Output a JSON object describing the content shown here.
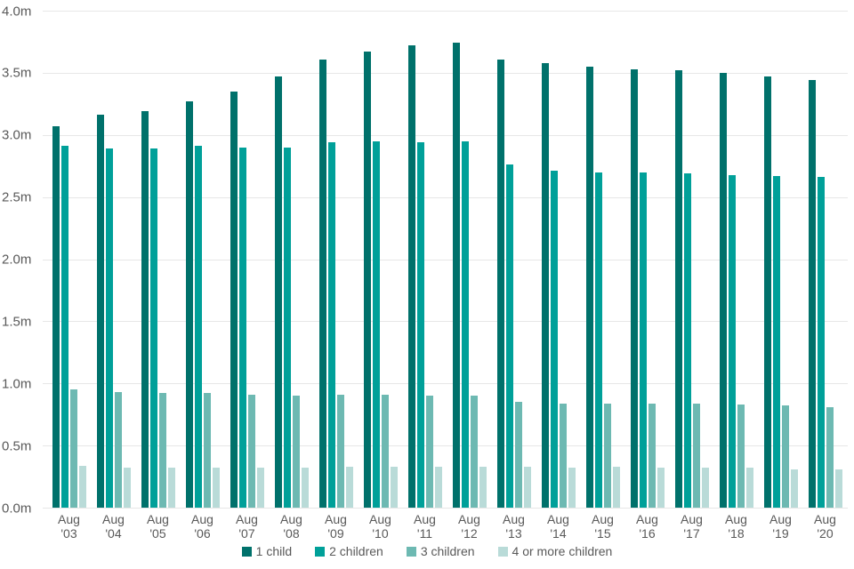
{
  "chart_data": {
    "type": "bar",
    "title": "",
    "categories": [
      "Aug '03",
      "Aug '04",
      "Aug '05",
      "Aug '06",
      "Aug '07",
      "Aug '08",
      "Aug '09",
      "Aug '10",
      "Aug '11",
      "Aug '12",
      "Aug '13",
      "Aug '14",
      "Aug '15",
      "Aug '16",
      "Aug '17",
      "Aug '18",
      "Aug '19",
      "Aug '20"
    ],
    "series": [
      {
        "name": "1 child",
        "color": "#00716B",
        "values": [
          3.07,
          3.16,
          3.19,
          3.27,
          3.35,
          3.47,
          3.61,
          3.67,
          3.72,
          3.74,
          3.61,
          3.58,
          3.55,
          3.53,
          3.52,
          3.5,
          3.47,
          3.44
        ]
      },
      {
        "name": "2 children",
        "color": "#00A099",
        "values": [
          2.91,
          2.89,
          2.89,
          2.91,
          2.9,
          2.9,
          2.94,
          2.95,
          2.94,
          2.95,
          2.76,
          2.71,
          2.7,
          2.7,
          2.69,
          2.68,
          2.67,
          2.66
        ]
      },
      {
        "name": "3 children",
        "color": "#6DB9B2",
        "values": [
          0.95,
          0.93,
          0.92,
          0.92,
          0.91,
          0.9,
          0.91,
          0.91,
          0.9,
          0.9,
          0.85,
          0.84,
          0.84,
          0.84,
          0.84,
          0.83,
          0.82,
          0.81
        ]
      },
      {
        "name": "4 or more children",
        "color": "#B9DBD8",
        "values": [
          0.34,
          0.32,
          0.32,
          0.32,
          0.32,
          0.32,
          0.33,
          0.33,
          0.33,
          0.33,
          0.33,
          0.32,
          0.33,
          0.32,
          0.32,
          0.32,
          0.31,
          0.31
        ]
      }
    ],
    "xlabel": "",
    "ylabel": "",
    "ylim": [
      0,
      4.0
    ],
    "ytick_step": 0.5,
    "ytick_labels": [
      "0.0m",
      "0.5m",
      "1.0m",
      "1.5m",
      "2.0m",
      "2.5m",
      "3.0m",
      "3.5m",
      "4.0m"
    ],
    "grid": true,
    "legend_position": "bottom",
    "axis_text_color": "#595959",
    "gridline_color": "#e7e7e7"
  }
}
